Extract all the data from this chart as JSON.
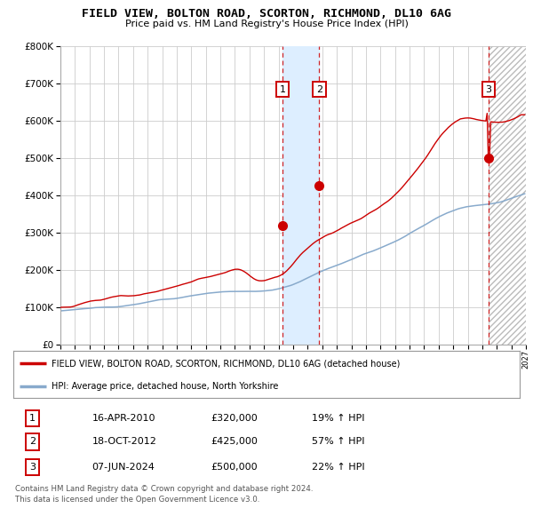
{
  "title": "FIELD VIEW, BOLTON ROAD, SCORTON, RICHMOND, DL10 6AG",
  "subtitle": "Price paid vs. HM Land Registry's House Price Index (HPI)",
  "x_start_year": 1995,
  "x_end_year": 2027,
  "ylim": [
    0,
    800000
  ],
  "yticks": [
    0,
    100000,
    200000,
    300000,
    400000,
    500000,
    600000,
    700000,
    800000
  ],
  "ytick_labels": [
    "£0",
    "£100K",
    "£200K",
    "£300K",
    "£400K",
    "£500K",
    "£600K",
    "£700K",
    "£800K"
  ],
  "sale_events": [
    {
      "year": 2010.29,
      "price": 320000,
      "label": "1",
      "date": "16-APR-2010",
      "price_str": "£320,000",
      "pct": "19% ↑ HPI"
    },
    {
      "year": 2012.8,
      "price": 425000,
      "label": "2",
      "date": "18-OCT-2012",
      "price_str": "£425,000",
      "pct": "57% ↑ HPI"
    },
    {
      "year": 2024.44,
      "price": 500000,
      "label": "3",
      "date": "07-JUN-2024",
      "price_str": "£500,000",
      "pct": "22% ↑ HPI"
    }
  ],
  "legend_line1": "FIELD VIEW, BOLTON ROAD, SCORTON, RICHMOND, DL10 6AG (detached house)",
  "legend_line2": "HPI: Average price, detached house, North Yorkshire",
  "footer_line1": "Contains HM Land Registry data © Crown copyright and database right 2024.",
  "footer_line2": "This data is licensed under the Open Government Licence v3.0.",
  "property_color": "#cc0000",
  "hpi_color": "#88aacc",
  "bg_color": "#ffffff",
  "grid_color": "#cccccc",
  "shade_color": "#ddeeff",
  "fig_w": 6.0,
  "fig_h": 5.9,
  "dpi": 100
}
